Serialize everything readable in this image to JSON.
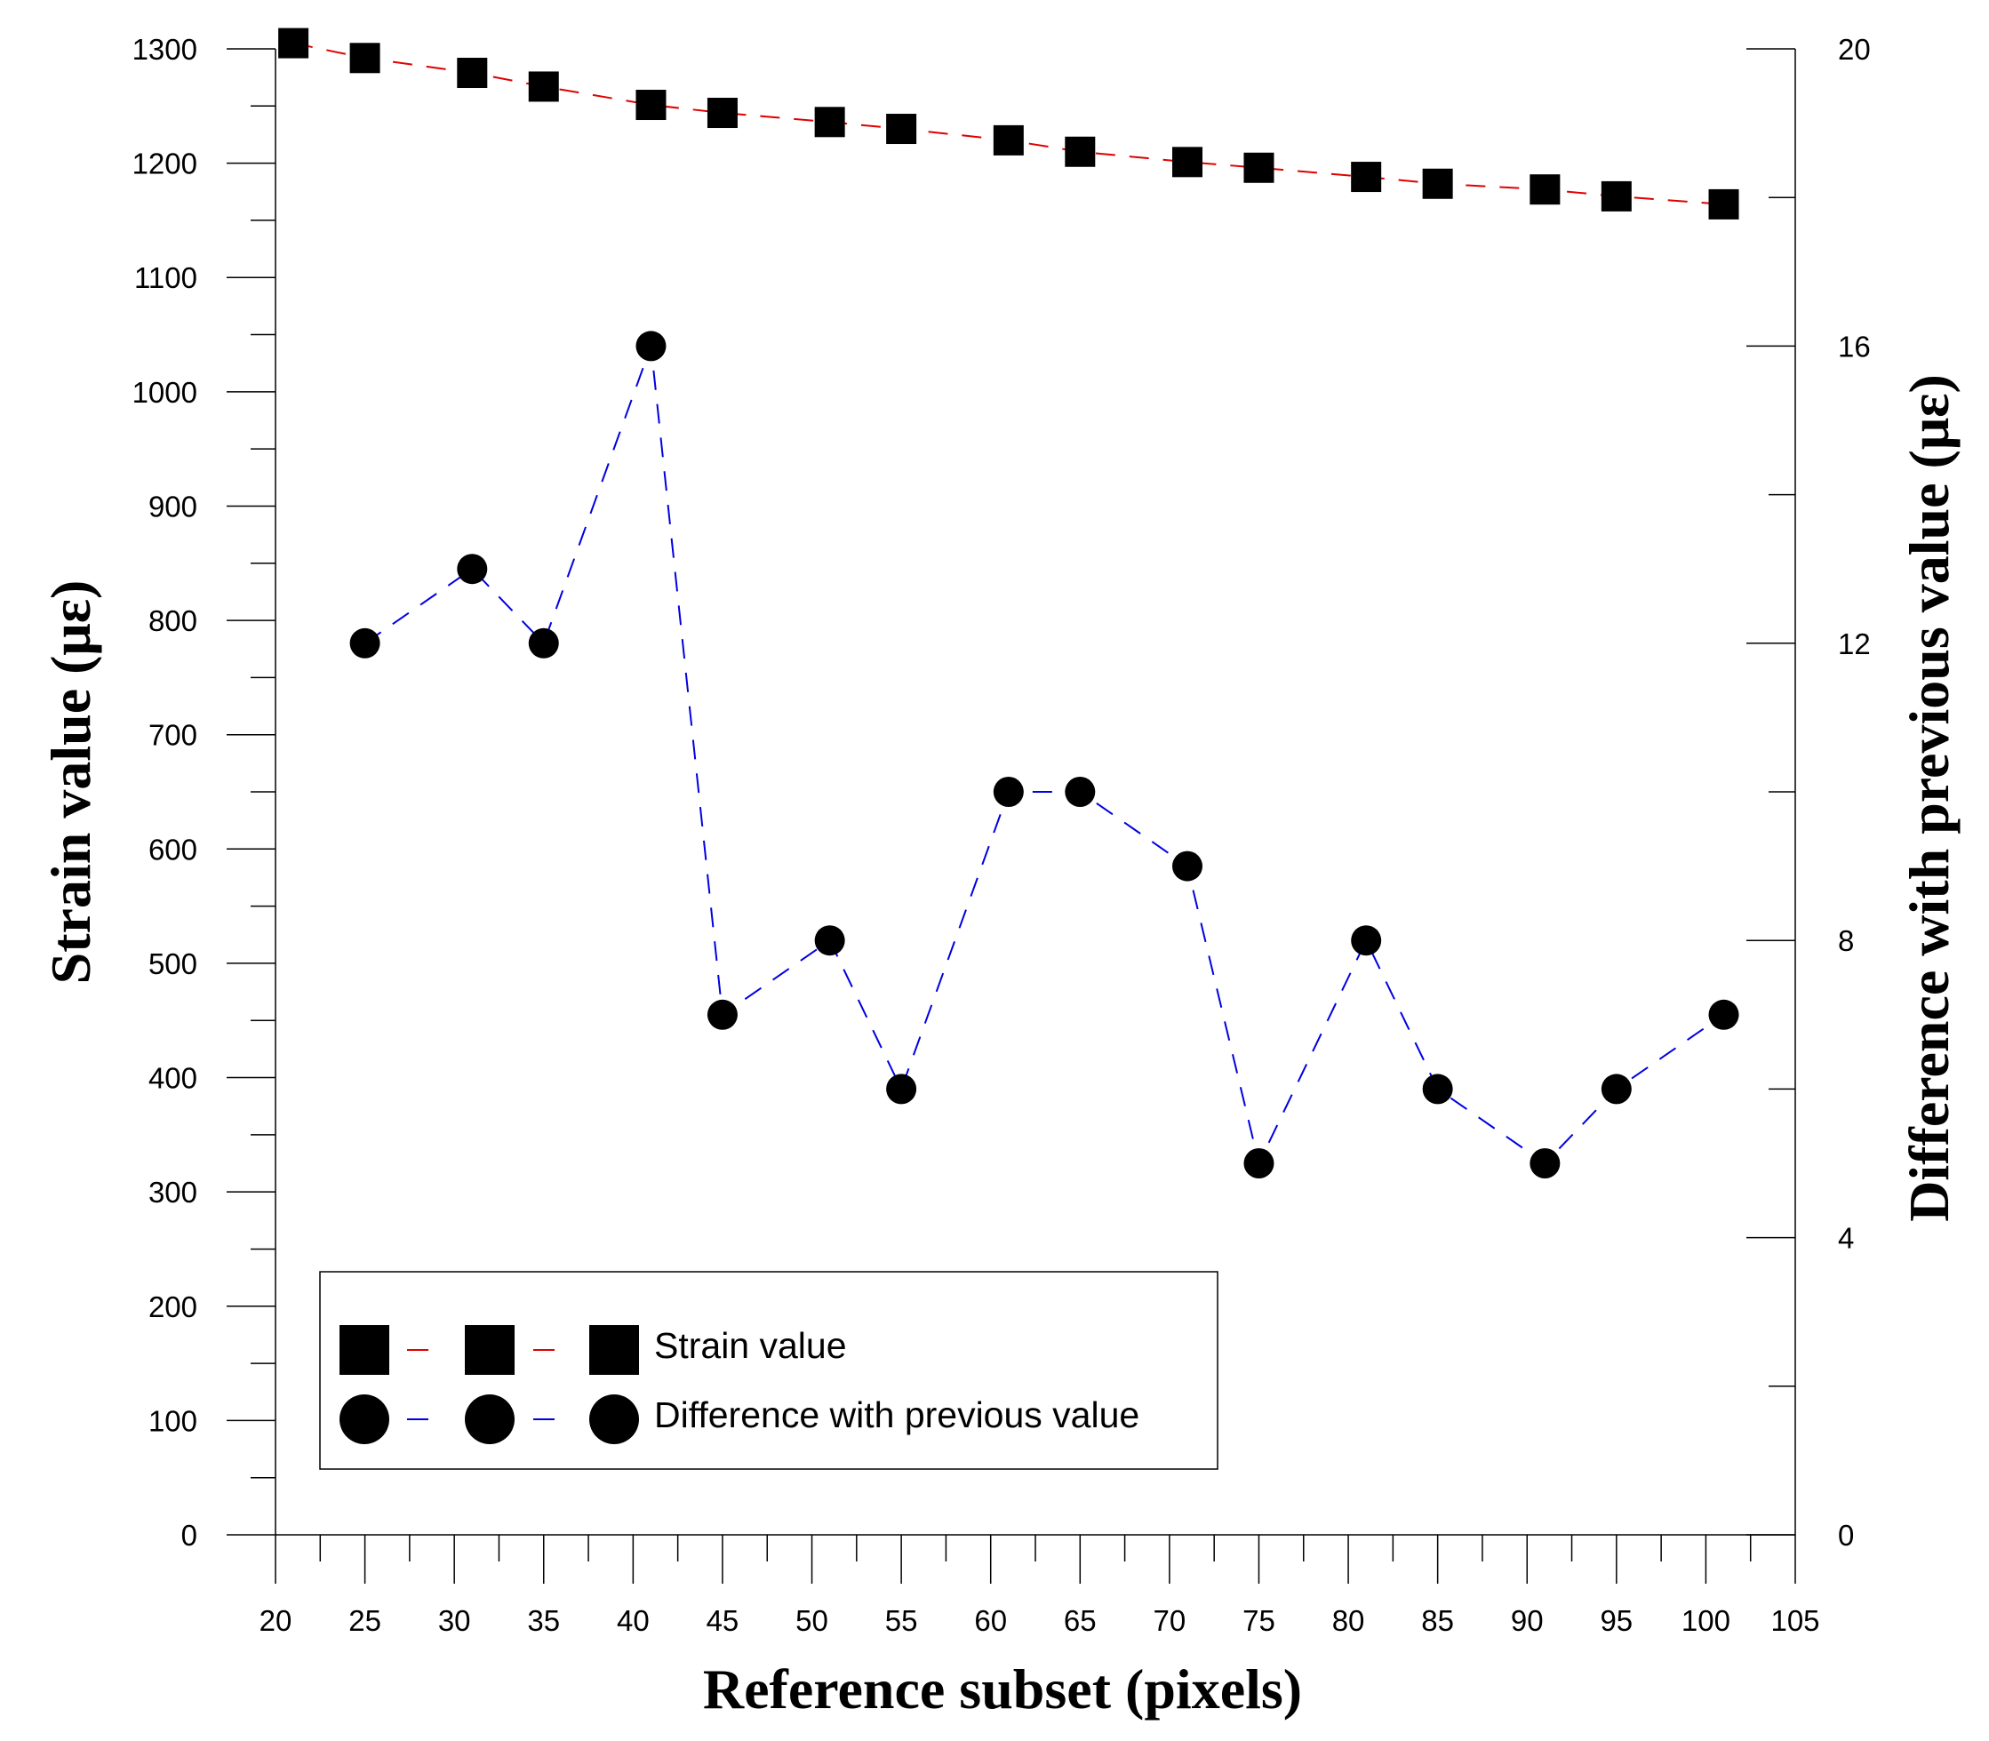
{
  "chart_data": {
    "type": "line",
    "xlabel": "Reference subset (pixels)",
    "ylabel": "Strain value (με)",
    "y2label": "Difference with previous value (με)",
    "xlim": [
      20,
      105
    ],
    "ylim": [
      0,
      1300
    ],
    "y2lim": [
      0,
      20
    ],
    "x_ticks": [
      20,
      25,
      30,
      35,
      40,
      45,
      50,
      55,
      60,
      65,
      70,
      75,
      80,
      85,
      90,
      95,
      100,
      105
    ],
    "y_ticks": [
      0,
      100,
      200,
      300,
      400,
      500,
      600,
      700,
      800,
      900,
      1000,
      1100,
      1200,
      1300
    ],
    "y2_ticks": [
      0,
      4,
      8,
      12,
      16,
      20
    ],
    "legend_position": "bottom-left",
    "series": [
      {
        "name": "Strain value",
        "axis": "left",
        "marker": "square",
        "line_color": "#e00000",
        "x": [
          21,
          25,
          31,
          35,
          41,
          45,
          51,
          55,
          61,
          65,
          71,
          75,
          81,
          85,
          91,
          95,
          101
        ],
        "values": [
          1305,
          1292,
          1279,
          1267,
          1251,
          1244,
          1236,
          1230,
          1220,
          1210,
          1201,
          1196,
          1188,
          1182,
          1177,
          1171,
          1164
        ]
      },
      {
        "name": "Difference with previous value",
        "axis": "right",
        "marker": "circle",
        "line_color": "#0000e0",
        "x": [
          25,
          31,
          35,
          41,
          45,
          51,
          55,
          61,
          65,
          71,
          75,
          81,
          85,
          91,
          95,
          101
        ],
        "values": [
          12,
          13,
          12,
          16,
          7,
          8,
          6,
          10,
          10,
          9,
          5,
          8,
          6,
          5,
          6,
          7
        ]
      }
    ]
  }
}
